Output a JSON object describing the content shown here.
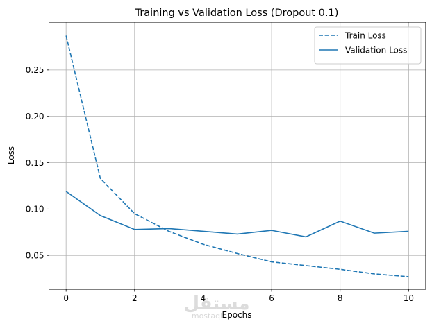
{
  "chart_data": {
    "type": "line",
    "title": "Training vs Validation Loss (Dropout 0.1)",
    "xlabel": "Epochs",
    "ylabel": "Loss",
    "x": [
      0,
      1,
      2,
      3,
      4,
      5,
      6,
      7,
      8,
      9,
      10
    ],
    "xticks": [
      0,
      2,
      4,
      6,
      8,
      10
    ],
    "xtick_labels": [
      "0",
      "2",
      "4",
      "6",
      "8",
      "10"
    ],
    "yticks": [
      0.05,
      0.1,
      0.15,
      0.2,
      0.25
    ],
    "ytick_labels": [
      "0.05",
      "0.10",
      "0.15",
      "0.20",
      "0.25"
    ],
    "xlim": [
      -0.5,
      10.5
    ],
    "ylim": [
      0.0135,
      0.3015
    ],
    "grid": true,
    "legend_position": "top-right",
    "series": [
      {
        "name": "Train Loss",
        "style": "dashed",
        "color": "#1f77b4",
        "values": [
          0.287,
          0.133,
          0.095,
          0.076,
          0.062,
          0.052,
          0.043,
          0.039,
          0.035,
          0.03,
          0.027
        ]
      },
      {
        "name": "Validation Loss",
        "style": "solid",
        "color": "#1f77b4",
        "values": [
          0.119,
          0.093,
          0.078,
          0.079,
          0.076,
          0.073,
          0.077,
          0.07,
          0.087,
          0.074,
          0.076
        ]
      }
    ]
  },
  "watermark": {
    "arabic": "مستقل",
    "latin": "mostaql"
  }
}
